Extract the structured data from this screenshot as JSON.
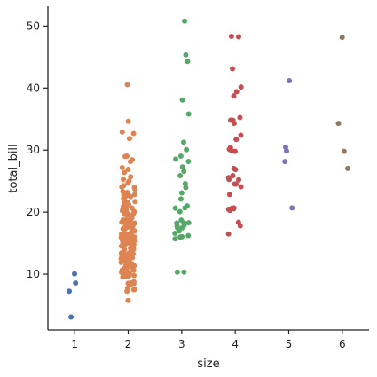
{
  "chart_data": {
    "type": "scatter",
    "title": "",
    "xlabel": "size",
    "ylabel": "total_bill",
    "categories": [
      "1",
      "2",
      "3",
      "4",
      "5",
      "6"
    ],
    "xlim": [
      0.5,
      6.5
    ],
    "ylim": [
      1.0,
      53.2
    ],
    "yticks": [
      10,
      20,
      30,
      40,
      50
    ],
    "grid": false,
    "legend": "none",
    "series": [
      {
        "category": "1",
        "color": "#4c72b0",
        "values": [
          10.07,
          8.58,
          7.25,
          3.07
        ]
      },
      {
        "category": "2",
        "color": "#dd8452",
        "values": [
          40.55,
          34.65,
          32.9,
          32.68,
          31.85,
          29.03,
          28.97,
          28.44,
          28.15,
          27.18,
          26.88,
          26.41,
          25.71,
          25.29,
          25.0,
          24.71,
          24.27,
          24.06,
          24.01,
          23.68,
          23.33,
          23.17,
          22.82,
          22.76,
          22.75,
          22.67,
          22.49,
          22.42,
          22.23,
          21.7,
          21.58,
          21.5,
          21.16,
          21.01,
          20.92,
          20.65,
          20.45,
          20.29,
          20.23,
          20.08,
          19.82,
          19.81,
          19.77,
          19.65,
          19.49,
          19.44,
          19.08,
          18.78,
          18.71,
          18.69,
          18.64,
          18.43,
          18.35,
          18.29,
          18.28,
          18.26,
          18.24,
          18.15,
          17.92,
          17.89,
          17.82,
          17.81,
          17.78,
          17.59,
          17.51,
          17.47,
          17.46,
          17.31,
          17.29,
          17.26,
          17.07,
          16.99,
          16.97,
          16.93,
          16.66,
          16.58,
          16.47,
          16.45,
          16.43,
          16.4,
          16.31,
          16.27,
          16.21,
          16.04,
          16.0,
          15.98,
          15.95,
          15.77,
          15.69,
          15.53,
          15.48,
          15.42,
          15.38,
          15.36,
          15.06,
          15.04,
          15.01,
          14.83,
          14.78,
          14.73,
          14.52,
          14.48,
          14.31,
          14.26,
          14.15,
          14.07,
          13.94,
          13.81,
          13.51,
          13.42,
          13.42,
          13.39,
          13.37,
          13.28,
          13.27,
          13.16,
          13.13,
          13.03,
          13.0,
          13.0,
          12.9,
          12.76,
          12.74,
          12.69,
          12.66,
          12.6,
          12.54,
          12.48,
          12.46,
          12.43,
          12.26,
          12.16,
          12.03,
          12.02,
          11.87,
          11.69,
          11.61,
          11.59,
          11.38,
          11.35,
          11.24,
          11.17,
          11.02,
          10.77,
          10.65,
          10.63,
          10.59,
          10.51,
          10.34,
          10.33,
          10.29,
          10.27,
          10.09,
          10.07,
          9.94,
          9.78,
          9.68,
          9.6,
          9.55,
          8.77,
          8.58,
          8.52,
          8.51,
          8.35,
          7.74,
          7.56,
          7.51,
          7.25,
          5.75
        ]
      },
      {
        "category": "3",
        "color": "#55a868",
        "values": [
          50.81,
          45.35,
          44.3,
          38.07,
          35.83,
          31.27,
          30.06,
          29.03,
          28.55,
          28.17,
          27.28,
          26.59,
          25.89,
          24.59,
          23.95,
          23.1,
          22.12,
          21.01,
          20.69,
          20.65,
          20.08,
          18.71,
          18.29,
          18.26,
          18.24,
          17.92,
          17.78,
          17.47,
          17.46,
          16.97,
          16.58,
          16.21,
          16.04,
          15.69,
          15.98,
          10.33,
          10.34
        ]
      },
      {
        "category": "4",
        "color": "#c44e52",
        "values": [
          48.33,
          48.27,
          43.11,
          40.17,
          39.42,
          38.73,
          35.26,
          34.83,
          34.81,
          34.3,
          32.4,
          31.71,
          30.14,
          30.4,
          29.8,
          29.85,
          27.05,
          26.86,
          25.89,
          25.56,
          25.28,
          25.21,
          24.55,
          24.52,
          24.08,
          22.82,
          20.69,
          20.58,
          20.53,
          20.45,
          20.27,
          18.35,
          17.81,
          16.49
        ]
      },
      {
        "category": "5",
        "color": "#8172b3",
        "values": [
          41.19,
          30.46,
          29.85,
          28.15,
          20.69
        ]
      },
      {
        "category": "6",
        "color": "#937860",
        "values": [
          48.17,
          34.3,
          29.8,
          27.05
        ]
      }
    ]
  }
}
